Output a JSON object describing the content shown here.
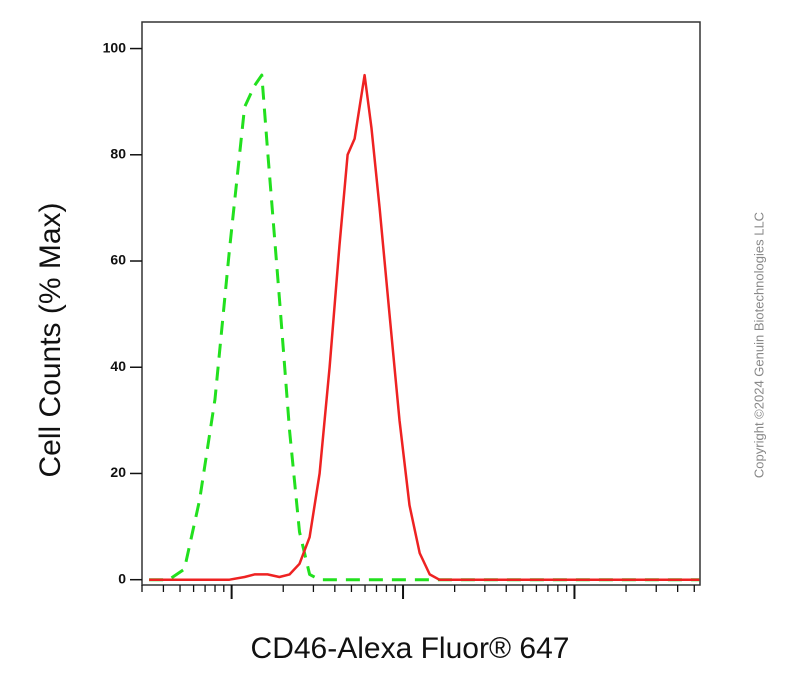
{
  "chart_data": {
    "type": "line",
    "xlabel": "CD46-Alexa Fluor® 647",
    "ylabel": "Cell Counts (% Max)",
    "annotation": "Copyright ©2024 Genuin Biotechnologies LLC",
    "xscale": "log",
    "xlim": [
      300,
      540000
    ],
    "ylim": [
      -1,
      105
    ],
    "xticks": [
      300,
      400,
      500,
      600,
      700,
      800,
      900,
      1000,
      2000,
      3000,
      4000,
      5000,
      6000,
      7000,
      8000,
      9000,
      10000,
      20000,
      30000,
      40000,
      50000,
      60000,
      70000,
      80000,
      90000,
      100000,
      200000,
      300000,
      400000,
      500000
    ],
    "yticks": [
      0,
      20,
      40,
      60,
      80,
      100
    ],
    "x": [
      330,
      430,
      530,
      650,
      800,
      970,
      1190,
      1360,
      1500,
      1620,
      1900,
      2180,
      2490,
      2850,
      3260,
      3730,
      4260,
      4750,
      5220,
      5970,
      6550,
      7300,
      8340,
      9540,
      10900,
      12500,
      14300,
      16300,
      36500,
      140000,
      535000
    ],
    "series": [
      {
        "color": "#22e01e",
        "dashed": true,
        "values": [
          0,
          0,
          2,
          15,
          34,
          62,
          89,
          93,
          95,
          81,
          53,
          28,
          9,
          1,
          0,
          0,
          0,
          0,
          0,
          0,
          0,
          0,
          0,
          0,
          0,
          0,
          0,
          0,
          0,
          0,
          0
        ]
      },
      {
        "color": "#ee2222",
        "dashed": false,
        "values": [
          0,
          0,
          0,
          0,
          0,
          0,
          0.5,
          1,
          1,
          1,
          0.5,
          1,
          3,
          8,
          20,
          40,
          63,
          80,
          83,
          95,
          85,
          70,
          50,
          30,
          14,
          5,
          1,
          0,
          0,
          0,
          0
        ]
      }
    ]
  }
}
